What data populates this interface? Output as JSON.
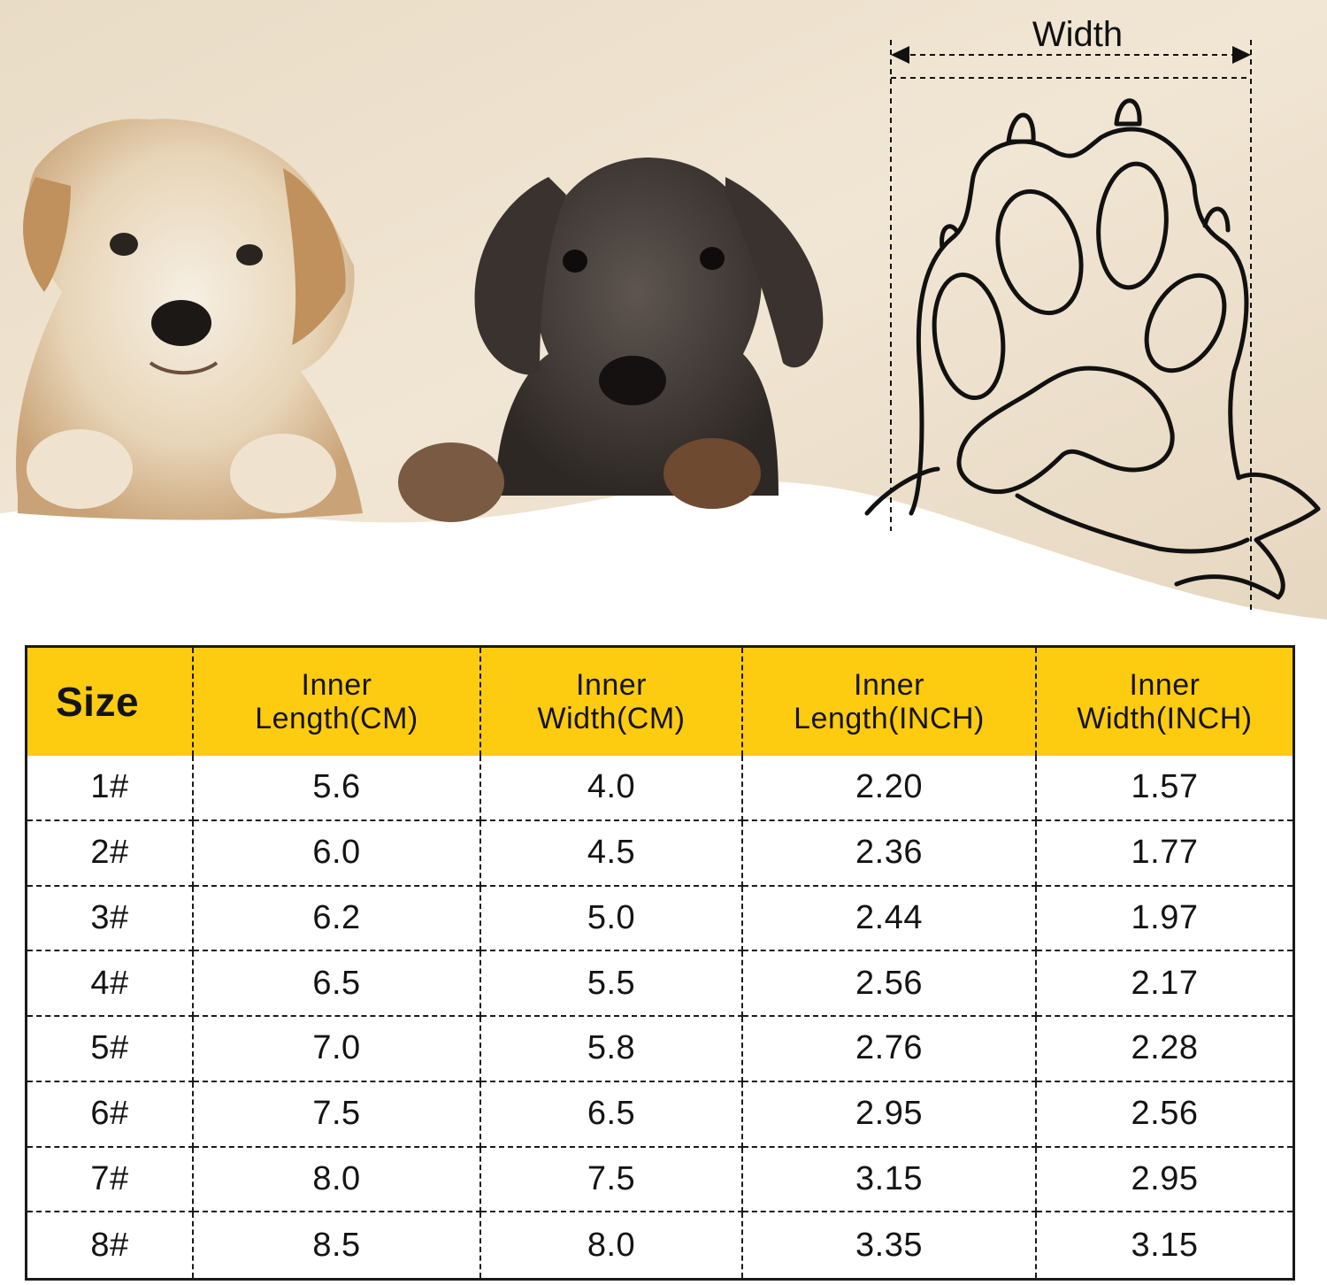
{
  "diagram": {
    "width_label": "Width"
  },
  "colors": {
    "header": "#fdcb10",
    "border": "#1a1a1a",
    "background": "#f0e4d2"
  },
  "table": {
    "headers": [
      {
        "line1": "Size",
        "line2": ""
      },
      {
        "line1": "Inner",
        "line2": "Length(CM)"
      },
      {
        "line1": "Inner",
        "line2": "Width(CM)"
      },
      {
        "line1": "Inner",
        "line2": "Length(INCH)"
      },
      {
        "line1": "Inner",
        "line2": "Width(INCH)"
      }
    ],
    "rows": [
      [
        "1#",
        "5.6",
        "4.0",
        "2.20",
        "1.57"
      ],
      [
        "2#",
        "6.0",
        "4.5",
        "2.36",
        "1.77"
      ],
      [
        "3#",
        "6.2",
        "5.0",
        "2.44",
        "1.97"
      ],
      [
        "4#",
        "6.5",
        "5.5",
        "2.56",
        "2.17"
      ],
      [
        "5#",
        "7.0",
        "5.8",
        "2.76",
        "2.28"
      ],
      [
        "6#",
        "7.5",
        "6.5",
        "2.95",
        "2.56"
      ],
      [
        "7#",
        "8.0",
        "7.5",
        "3.15",
        "2.95"
      ],
      [
        "8#",
        "8.5",
        "8.0",
        "3.35",
        "3.15"
      ]
    ]
  }
}
